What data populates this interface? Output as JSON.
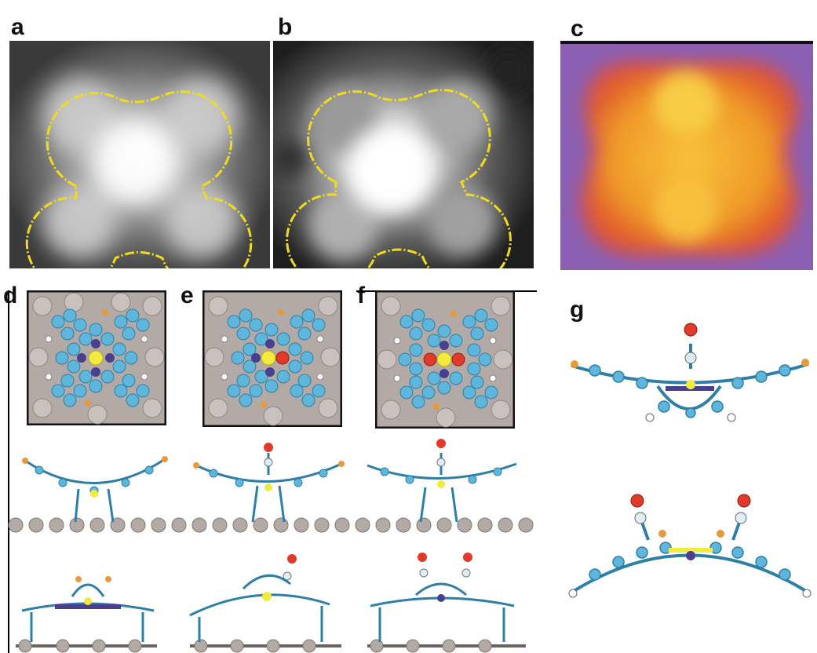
{
  "panels": {
    "a": {
      "label": "a"
    },
    "b": {
      "label": "b"
    },
    "c": {
      "label": "c"
    },
    "d": {
      "label": "d"
    },
    "e": {
      "label": "e"
    },
    "f": {
      "label": "f"
    },
    "g": {
      "label": "g"
    }
  },
  "colors": {
    "outline": "#f0dc1a",
    "carbon": "#5fb6dc",
    "nitrogen": "#4a3f8f",
    "metal": "#f2ea3c",
    "oxygen": "#e23a2a",
    "bromine": "#e89a3a",
    "hydrogen": "#ffffff",
    "substrate": "#b3aaa6",
    "map_background": "#8b5fb2",
    "map_core": "#f6b224"
  }
}
